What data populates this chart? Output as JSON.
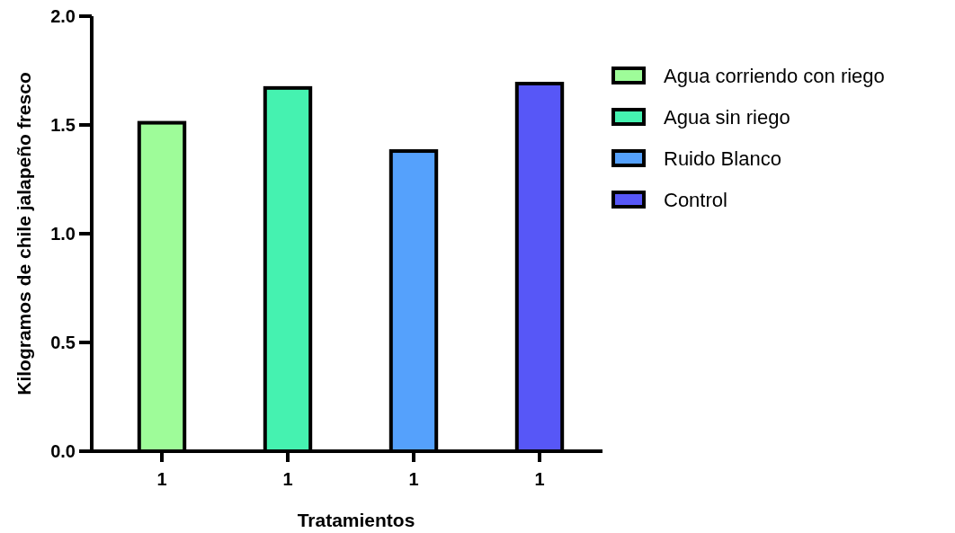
{
  "chart_data": {
    "type": "bar",
    "xlabel": "Tratamientos",
    "ylabel": "Kilogramos de chile jalapeño fresco",
    "categories": [
      "1",
      "1",
      "1",
      "1"
    ],
    "stacked": true,
    "series": [
      {
        "name": "Agua corriendo con riego",
        "color": "#9efc99",
        "values": [
          1.51,
          null,
          null,
          null
        ]
      },
      {
        "name": "Agua sin riego",
        "color": "#45f2b0",
        "values": [
          null,
          1.67,
          null,
          null
        ]
      },
      {
        "name": "Ruido Blanco",
        "color": "#55a1fc",
        "values": [
          null,
          null,
          1.38,
          null
        ]
      },
      {
        "name": "Control",
        "color": "#5757f7",
        "values": [
          null,
          null,
          null,
          1.69
        ]
      }
    ],
    "ylim": [
      0,
      2
    ],
    "yticks": [
      {
        "value": 0,
        "label": "0.0"
      },
      {
        "value": 0.5,
        "label": "0.5"
      },
      {
        "value": 1,
        "label": "1.0"
      },
      {
        "value": 1.5,
        "label": "1.5"
      },
      {
        "value": 2,
        "label": "2.0"
      }
    ],
    "grid": false,
    "legend": "right"
  }
}
